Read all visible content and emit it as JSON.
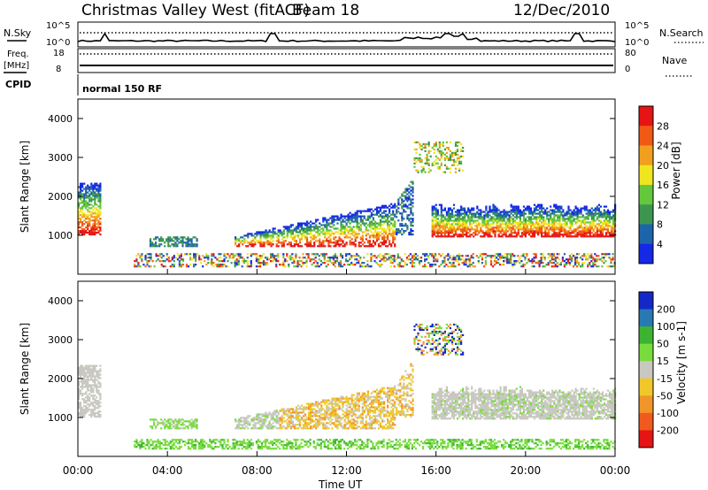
{
  "header": {
    "station": "Christmas Valley West (fitACF)",
    "beam": "Beam 18",
    "date": "12/Dec/2010"
  },
  "noise_panel": {
    "left_label": "N.Sky",
    "right_label": "N.Search",
    "ticks_left": [
      "10^5",
      "10^0"
    ],
    "ticks_right": [
      "10^5",
      "10^0"
    ]
  },
  "freq_panel": {
    "left_label_1": "Freq.",
    "left_label_2": "[MHz]",
    "right_label": "Nave",
    "ticks_left": [
      "18",
      "8"
    ],
    "ticks_right": [
      "80",
      "0"
    ]
  },
  "cpid_panel": {
    "left_label": "CPID",
    "mode_text": "normal 150 RF"
  },
  "chart_data": [
    {
      "type": "heatmap",
      "parameter": "Power",
      "ylabel": "Slant Range [km]",
      "yticks": [
        "1000",
        "2000",
        "3000",
        "4000"
      ],
      "colorbar_label": "Power [dB]",
      "colorbar_ticks": [
        "4",
        "8",
        "12",
        "16",
        "20",
        "24",
        "28"
      ],
      "colorbar_colors": [
        "#1428e6",
        "#1e64aa",
        "#3c9650",
        "#64c83c",
        "#f0e61e",
        "#f0a01e",
        "#f05a14",
        "#e61414"
      ],
      "ylim": [
        0,
        4500
      ],
      "xlim_hours": [
        0,
        24
      ]
    },
    {
      "type": "heatmap",
      "parameter": "Velocity",
      "ylabel": "Slant Range [km]",
      "yticks": [
        "1000",
        "2000",
        "3000",
        "4000"
      ],
      "colorbar_label": "Velocity [m s-1]",
      "colorbar_ticks": [
        "200",
        "100",
        "50",
        "15",
        "-15",
        "-50",
        "-100",
        "-200"
      ],
      "colorbar_colors": [
        "#1428c8",
        "#2878b4",
        "#3cb432",
        "#78dc3c",
        "#c8c8c0",
        "#f0c828",
        "#f09628",
        "#f05a1e",
        "#e61414"
      ],
      "ylim": [
        0,
        4500
      ],
      "xlim_hours": [
        0,
        24
      ],
      "xticks": [
        "00:00",
        "04:00",
        "08:00",
        "12:00",
        "16:00",
        "20:00",
        "00:00"
      ],
      "xlabel": "Time UT"
    }
  ]
}
